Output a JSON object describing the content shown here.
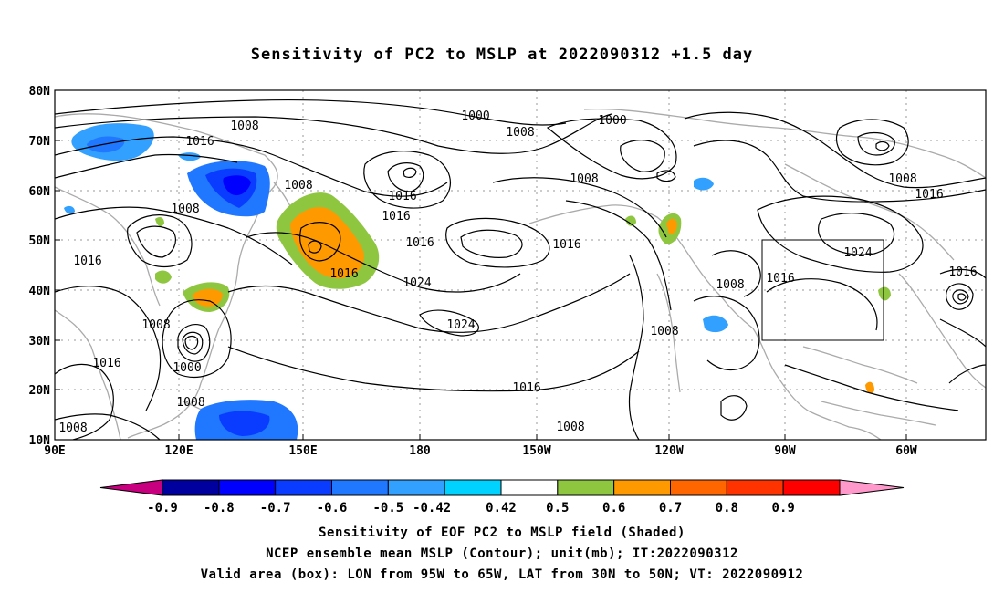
{
  "title": "Sensitivity of PC2 to MSLP at 2022090312 +1.5 day",
  "map": {
    "lat_labels": [
      "80N",
      "70N",
      "60N",
      "50N",
      "40N",
      "30N",
      "20N",
      "10N"
    ],
    "lon_labels": [
      "90E",
      "120E",
      "150E",
      "180",
      "150W",
      "120W",
      "90W",
      "60W"
    ],
    "contour_labels": [
      "1000",
      "1008",
      "1016",
      "1000",
      "1008",
      "1016",
      "1008",
      "1008",
      "1016",
      "1016",
      "1024",
      "1024",
      "1016",
      "1016",
      "1008",
      "1000",
      "1008",
      "1016",
      "1024",
      "1008",
      "1008",
      "1016",
      "1016",
      "1008",
      "1016",
      "1008",
      "1016",
      "1008",
      "1016",
      "1008"
    ],
    "box": {
      "lon_range": "95W to 65W",
      "lat_range": "30N to 50N"
    }
  },
  "colorbar": {
    "labels": [
      "-0.9",
      "-0.8",
      "-0.7",
      "-0.6",
      "-0.5",
      "-0.42",
      "0.42",
      "0.5",
      "0.6",
      "0.7",
      "0.8",
      "0.9"
    ],
    "colors": [
      "#c8007f",
      "#00009e",
      "#0000ff",
      "#0a3cff",
      "#1f78ff",
      "#32a0ff",
      "#00d2ff",
      "#ffffff",
      "#8ec63f",
      "#ff9900",
      "#ff6600",
      "#ff3300",
      "#ff0000",
      "#ff99cc"
    ]
  },
  "footer": {
    "line1": "Sensitivity of EOF PC2 to MSLP field (Shaded)",
    "line2": "NCEP ensemble mean MSLP (Contour); unit(mb); IT:2022090312",
    "line3": "Valid area (box): LON from 95W to 65W, LAT from 30N to 50N; VT: 2022090912"
  }
}
